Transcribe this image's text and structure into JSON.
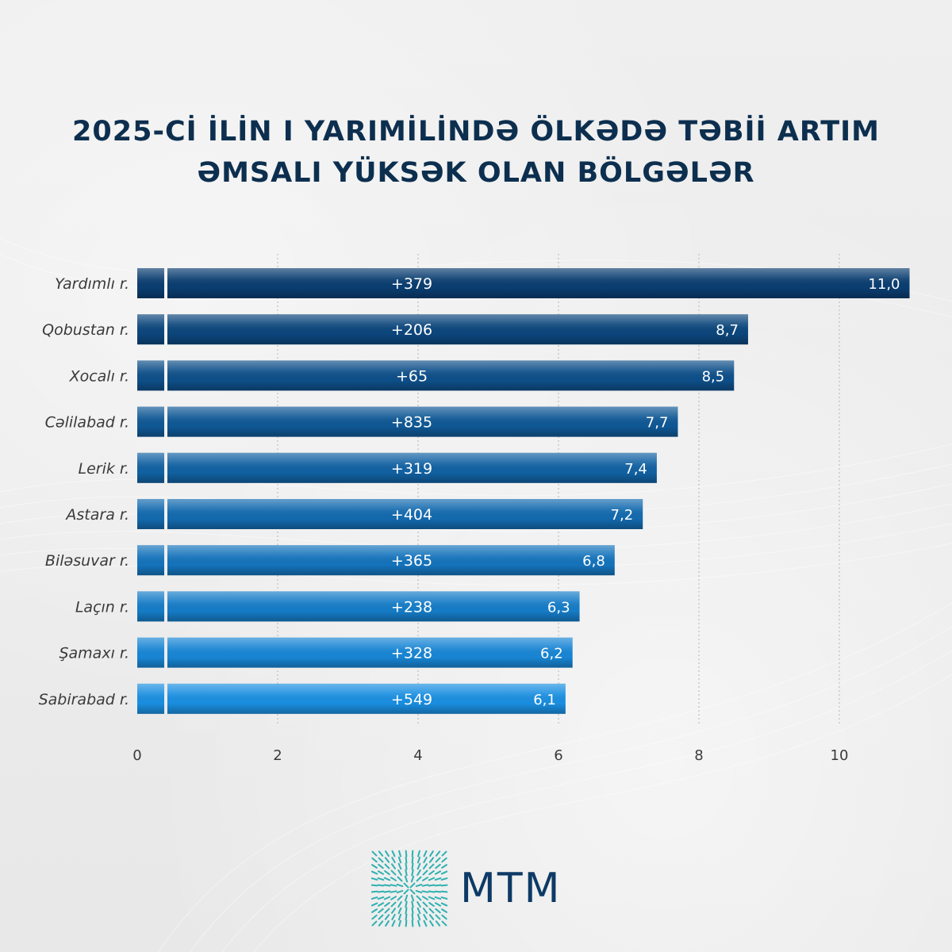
{
  "title": {
    "line1": "2025-Cİ İLİN I YARIMİLİNDƏ ÖLKƏDƏ TƏBİİ ARTIM",
    "line2": "ƏMSALI YÜKSƏK OLAN BÖLGƏLƏR"
  },
  "logo": {
    "text": "MTM"
  },
  "colors": {
    "title": "#0d2f4f",
    "bar_dark": "#0a3d70",
    "bar_light": "#1a8ee0",
    "axis_text": "#3a3a3a",
    "logo_mark": "#2fb0b0"
  },
  "chart_data": {
    "type": "bar",
    "orientation": "horizontal",
    "categories": [
      "Yardımlı r.",
      "Qobustan r.",
      "Xocalı r.",
      "Cəlilabad r.",
      "Lerik r.",
      "Astara r.",
      "Biləsuvar r.",
      "Laçın r.",
      "Şamaxı r.",
      "Sabirabad r."
    ],
    "values": [
      11.0,
      8.7,
      8.5,
      7.7,
      7.4,
      7.2,
      6.8,
      6.3,
      6.2,
      6.1
    ],
    "value_labels": [
      "11,0",
      "8,7",
      "8,5",
      "7,7",
      "7,4",
      "7,2",
      "6,8",
      "6,3",
      "6,2",
      "6,1"
    ],
    "inner_labels": [
      "+379",
      "+206",
      "+65",
      "+835",
      "+319",
      "+404",
      "+365",
      "+238",
      "+328",
      "+549"
    ],
    "xlim": [
      0,
      11.0
    ],
    "xticks": [
      0,
      2,
      4,
      6,
      8,
      10
    ],
    "grid": true
  }
}
